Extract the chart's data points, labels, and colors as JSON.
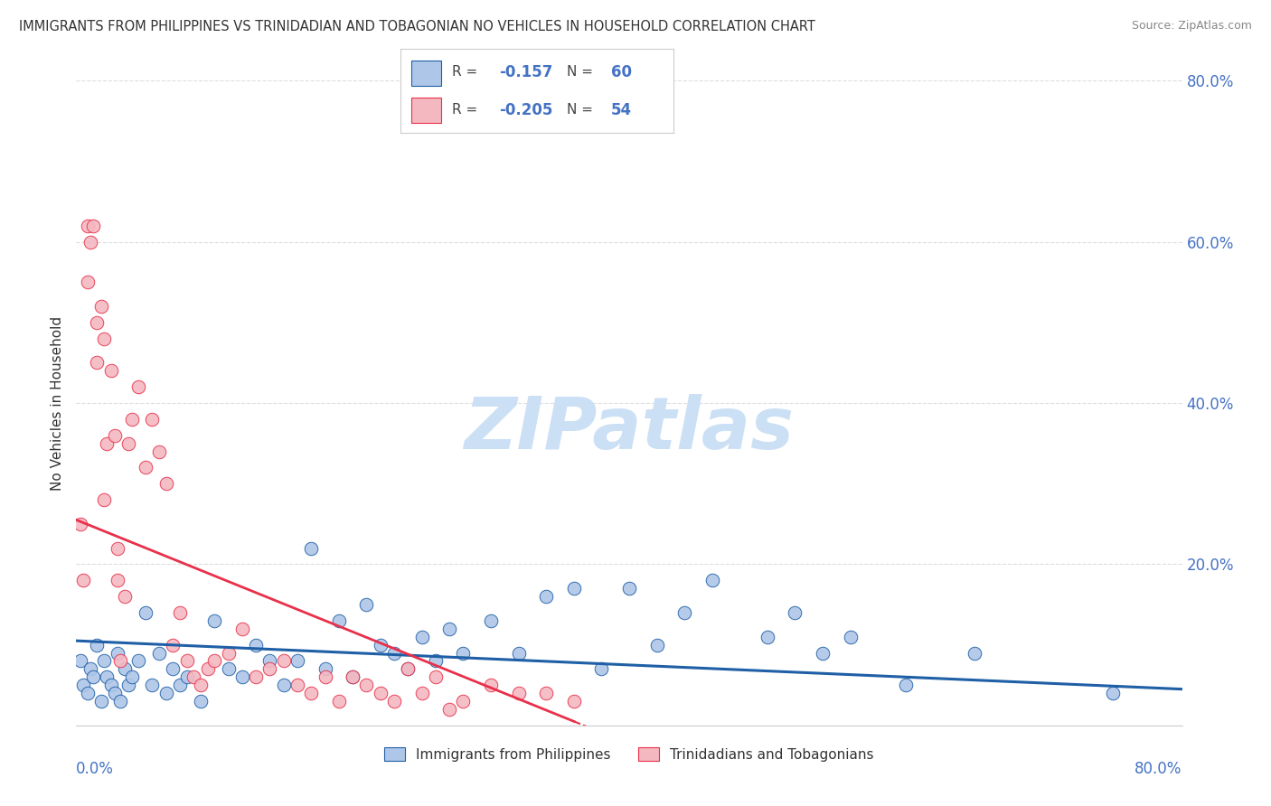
{
  "title": "IMMIGRANTS FROM PHILIPPINES VS TRINIDADIAN AND TOBAGONIAN NO VEHICLES IN HOUSEHOLD CORRELATION CHART",
  "source": "Source: ZipAtlas.com",
  "ylabel": "No Vehicles in Household",
  "legend_label1": "Immigrants from Philippines",
  "legend_label2": "Trinidadians and Tobagonians",
  "blue_color": "#aec6e8",
  "pink_color": "#f4b8c1",
  "blue_line_color": "#1f5fa6",
  "pink_line_color": "#e8304a",
  "blue_scatter_x": [
    0.3,
    0.5,
    0.8,
    1.0,
    1.2,
    1.5,
    1.8,
    2.0,
    2.2,
    2.5,
    2.8,
    3.0,
    3.2,
    3.5,
    3.8,
    4.0,
    4.5,
    5.0,
    5.5,
    6.0,
    6.5,
    7.0,
    7.5,
    8.0,
    9.0,
    10.0,
    11.0,
    12.0,
    13.0,
    14.0,
    15.0,
    16.0,
    17.0,
    18.0,
    19.0,
    20.0,
    21.0,
    22.0,
    23.0,
    24.0,
    25.0,
    26.0,
    27.0,
    28.0,
    30.0,
    32.0,
    34.0,
    36.0,
    38.0,
    40.0,
    42.0,
    44.0,
    46.0,
    50.0,
    52.0,
    54.0,
    56.0,
    60.0,
    65.0,
    75.0
  ],
  "blue_scatter_y": [
    8,
    5,
    4,
    7,
    6,
    10,
    3,
    8,
    6,
    5,
    4,
    9,
    3,
    7,
    5,
    6,
    8,
    14,
    5,
    9,
    4,
    7,
    5,
    6,
    3,
    13,
    7,
    6,
    10,
    8,
    5,
    8,
    22,
    7,
    13,
    6,
    15,
    10,
    9,
    7,
    11,
    8,
    12,
    9,
    13,
    9,
    16,
    17,
    7,
    17,
    10,
    14,
    18,
    11,
    14,
    9,
    11,
    5,
    9,
    4
  ],
  "pink_scatter_x": [
    0.3,
    0.5,
    0.8,
    0.8,
    1.0,
    1.2,
    1.5,
    1.5,
    1.8,
    2.0,
    2.0,
    2.2,
    2.5,
    2.8,
    3.0,
    3.0,
    3.2,
    3.5,
    3.8,
    4.0,
    4.5,
    5.0,
    5.5,
    6.0,
    6.5,
    7.0,
    7.5,
    8.0,
    8.5,
    9.0,
    9.5,
    10.0,
    11.0,
    12.0,
    13.0,
    14.0,
    15.0,
    16.0,
    17.0,
    18.0,
    19.0,
    20.0,
    21.0,
    22.0,
    23.0,
    24.0,
    25.0,
    26.0,
    27.0,
    28.0,
    30.0,
    32.0,
    34.0,
    36.0
  ],
  "pink_scatter_y": [
    25,
    18,
    55,
    62,
    60,
    62,
    50,
    45,
    52,
    28,
    48,
    35,
    44,
    36,
    18,
    22,
    8,
    16,
    35,
    38,
    42,
    32,
    38,
    34,
    30,
    10,
    14,
    8,
    6,
    5,
    7,
    8,
    9,
    12,
    6,
    7,
    8,
    5,
    4,
    6,
    3,
    6,
    5,
    4,
    3,
    7,
    4,
    6,
    2,
    3,
    5,
    4,
    4,
    3
  ],
  "xlim": [
    0,
    80
  ],
  "ylim": [
    0,
    80
  ],
  "ytick_vals": [
    0,
    20,
    40,
    60,
    80
  ],
  "right_ytick_labels": [
    "",
    "20.0%",
    "40.0%",
    "60.0%",
    "80.0%"
  ],
  "blue_trend_x": [
    0,
    80
  ],
  "blue_trend_y_start": 10.5,
  "blue_trend_y_end": 4.5,
  "pink_trend_x_start": 0,
  "pink_trend_x_end": 36,
  "pink_trend_y_start": 25.5,
  "pink_trend_y_end": 0.5,
  "pink_dash_x_start": 36,
  "pink_dash_x_end": 50,
  "watermark_text": "ZIPatlas",
  "watermark_color": "#cce0f5",
  "background_color": "#ffffff",
  "grid_color": "#dddddd",
  "title_color": "#333333",
  "tick_color": "#4472c4",
  "axis_tick_fontsize": 12,
  "title_fontsize": 10.5
}
